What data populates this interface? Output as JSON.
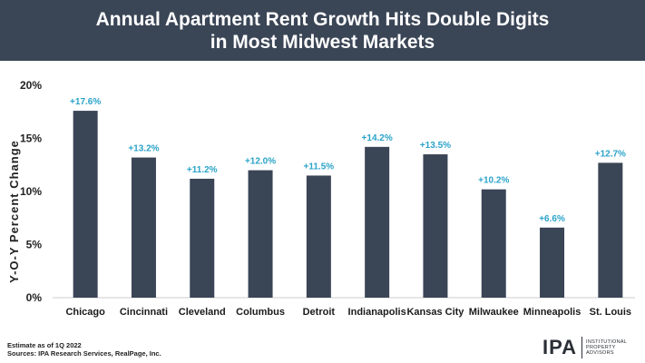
{
  "header": {
    "title_line1": "Annual Apartment Rent Growth Hits Double Digits",
    "title_line2": "in Most Midwest Markets"
  },
  "chart_data": {
    "type": "bar",
    "title": "Annual Apartment Rent Growth Hits Double Digits in Most Midwest Markets",
    "ylabel": "Y-O-Y Percent  Change",
    "xlabel": "",
    "categories": [
      "Chicago",
      "Cincinnati",
      "Cleveland",
      "Columbus",
      "Detroit",
      "Indianapolis",
      "Kansas City",
      "Milwaukee",
      "Minneapolis",
      "St. Louis"
    ],
    "values": [
      17.6,
      13.2,
      11.2,
      12.0,
      11.5,
      14.2,
      13.5,
      10.2,
      6.6,
      12.7
    ],
    "data_labels": [
      "+17.6%",
      "+13.2%",
      "+11.2%",
      "+12.0%",
      "+11.5%",
      "+14.2%",
      "+13.5%",
      "+10.2%",
      "+6.6%",
      "+12.7%"
    ],
    "yticks": [
      "0%",
      "5%",
      "10%",
      "15%",
      "20%"
    ],
    "ytick_values": [
      0,
      5,
      10,
      15,
      20
    ],
    "ylim": [
      0,
      20
    ],
    "grid": false,
    "colors": {
      "bar": "#3a4556",
      "label": "#2aa3c9",
      "header": "#3a4556"
    }
  },
  "footer": {
    "note1": "Estimate as of 1Q 2022",
    "note2": "Sources: IPA Research Services, RealPage, Inc."
  },
  "logo": {
    "main": "IPA",
    "line1": "INSTITUTIONAL",
    "line2": "PROPERTY",
    "line3": "ADVISORS"
  }
}
